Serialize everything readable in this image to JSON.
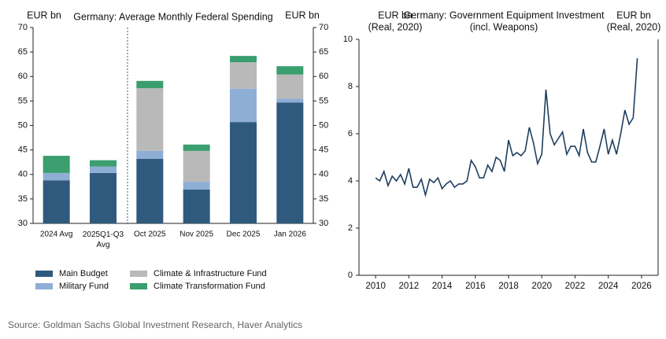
{
  "chart_data": [
    {
      "type": "stacked_bar",
      "title": "Germany: Average Monthly Federal Spending",
      "ylabel": "EUR bn",
      "y2label": "EUR bn",
      "categories": [
        "2024 Avg",
        "2025Q1-Q3\nAvg",
        "Oct 2025",
        "Nov 2025",
        "Dec 2025",
        "Jan 2026"
      ],
      "series": [
        {
          "name": "Main Budget",
          "color": "#2f5a7e",
          "values": [
            38.8,
            40.3,
            43.2,
            36.9,
            50.7,
            54.7
          ]
        },
        {
          "name": "Military Fund",
          "color": "#8eaed6",
          "values": [
            1.5,
            1.3,
            1.6,
            1.6,
            6.8,
            0.8
          ]
        },
        {
          "name": "Climate & Infrastructure Fund",
          "color": "#b9b9b9",
          "values": [
            0,
            0,
            12.8,
            6.3,
            5.4,
            4.9
          ]
        },
        {
          "name": "Climate Transformation Fund",
          "color": "#3a9e6e",
          "values": [
            3.5,
            1.3,
            1.5,
            1.3,
            1.3,
            1.7
          ]
        }
      ],
      "ylim": [
        30,
        70
      ],
      "yticks": [
        30,
        35,
        40,
        45,
        50,
        55,
        60,
        65,
        70
      ],
      "y2lim": [
        30,
        70
      ],
      "y2ticks": [
        30,
        35,
        40,
        45,
        50,
        55,
        60,
        65,
        70
      ]
    },
    {
      "type": "line",
      "title": "Germany: Government Equipment Investment",
      "subtitle": "(incl. Weapons)",
      "ylabel": [
        "EUR bn",
        "(Real, 2020)"
      ],
      "y2label": [
        "EUR bn",
        "(Real, 2020)"
      ],
      "color": "#1f3e5e",
      "x": [
        2010,
        2010.25,
        2010.5,
        2010.75,
        2011,
        2011.25,
        2011.5,
        2011.75,
        2012,
        2012.25,
        2012.5,
        2012.75,
        2013,
        2013.25,
        2013.5,
        2013.75,
        2014,
        2014.25,
        2014.5,
        2014.75,
        2015,
        2015.25,
        2015.5,
        2015.75,
        2016,
        2016.25,
        2016.5,
        2016.75,
        2017,
        2017.25,
        2017.5,
        2017.75,
        2018,
        2018.25,
        2018.5,
        2018.75,
        2019,
        2019.25,
        2019.5,
        2019.75,
        2020,
        2020.25,
        2020.5,
        2020.75,
        2021,
        2021.25,
        2021.5,
        2021.75,
        2022,
        2022.25,
        2022.5,
        2022.75,
        2023,
        2023.25,
        2023.5,
        2023.75,
        2024,
        2024.25,
        2024.5,
        2024.75,
        2025,
        2025.25,
        2025.5,
        2025.75
      ],
      "values": [
        4.13,
        4.0,
        4.4,
        3.8,
        4.2,
        4.0,
        4.27,
        3.87,
        4.53,
        3.73,
        3.73,
        4.07,
        3.4,
        4.07,
        3.93,
        4.13,
        3.67,
        3.87,
        4.0,
        3.73,
        3.87,
        3.87,
        4.0,
        4.87,
        4.6,
        4.13,
        4.13,
        4.67,
        4.4,
        5.0,
        4.87,
        4.4,
        5.73,
        5.07,
        5.2,
        5.07,
        5.27,
        6.27,
        5.6,
        4.73,
        5.13,
        7.87,
        6.0,
        5.53,
        5.8,
        6.07,
        5.13,
        5.47,
        5.47,
        5.07,
        6.2,
        5.2,
        4.8,
        4.8,
        5.47,
        6.2,
        5.13,
        5.73,
        5.13,
        6.0,
        7.0,
        6.4,
        6.67,
        9.2
      ],
      "xlim": [
        2009,
        2027
      ],
      "xticks": [
        2010,
        2012,
        2014,
        2016,
        2018,
        2020,
        2022,
        2024,
        2026
      ],
      "ylim": [
        0,
        10
      ],
      "yticks": [
        0,
        2,
        4,
        6,
        8,
        10
      ]
    }
  ],
  "source": "Source: Goldman Sachs Global Investment Research, Haver Analytics"
}
